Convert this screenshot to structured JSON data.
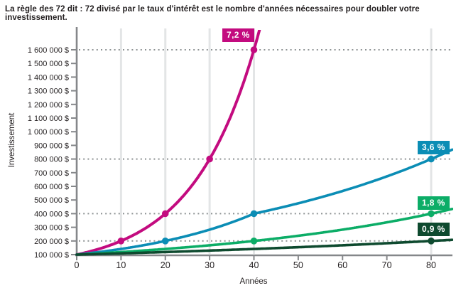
{
  "title": "La règle des 72 dit : 72 divisé par le taux d'intérêt est le nombre d'années nécessaires pour doubler votre investissement.",
  "chart_data": {
    "type": "line",
    "title": "La règle des 72 dit : 72 divisé par le taux d'intérêt est le nombre d'années nécessaires pour doubler votre investissement.",
    "xlabel": "Années",
    "ylabel": "Investissement",
    "x_ticks": [
      0,
      10,
      20,
      30,
      40,
      50,
      60,
      70,
      80
    ],
    "y_tick_labels": [
      "100 000 $",
      "200 000 $",
      "300 000 $",
      "400 000 $",
      "500 000 $",
      "600 000 $",
      "700 000 $",
      "800 000 $",
      "900 000 $",
      "1 000 000 $",
      "1 100 000 $",
      "1 200 000 $",
      "1 300 000 $",
      "1 400 000 $",
      "1 500 000 $",
      "1 600 000 $"
    ],
    "y_tick_values": [
      100000,
      200000,
      300000,
      400000,
      500000,
      600000,
      700000,
      800000,
      900000,
      1000000,
      1100000,
      1200000,
      1300000,
      1400000,
      1500000,
      1600000
    ],
    "xlim": [
      0,
      84.8
    ],
    "ylim": [
      100000,
      1780000
    ],
    "grid_vertical_years": [
      10,
      20,
      30,
      40,
      80
    ],
    "dotted_levels": [
      200000,
      400000,
      800000,
      1600000
    ],
    "axis_color": "#85878A",
    "gridline_color": "#E3E5E6",
    "dotted_color": "#8C9192",
    "text_color": "#231F20",
    "series": [
      {
        "name": "7,2 %",
        "rate_percent": 7.2,
        "color": "#C30B7F",
        "points": [
          [
            0,
            100000
          ],
          [
            10,
            200000
          ],
          [
            20,
            400000
          ],
          [
            30,
            800000
          ],
          [
            40,
            1600000
          ]
        ]
      },
      {
        "name": "3,6 %",
        "rate_percent": 3.6,
        "color": "#0B8DB5",
        "points": [
          [
            0,
            100000
          ],
          [
            20,
            200000
          ],
          [
            40,
            400000
          ],
          [
            80,
            800000
          ]
        ]
      },
      {
        "name": "1,8 %",
        "rate_percent": 1.8,
        "color": "#0CAD67",
        "points": [
          [
            0,
            100000
          ],
          [
            40,
            200000
          ],
          [
            80,
            400000
          ]
        ]
      },
      {
        "name": "0,9 %",
        "rate_percent": 0.9,
        "color": "#0E4A2F",
        "points": [
          [
            0,
            100000
          ],
          [
            80,
            200000
          ]
        ]
      }
    ]
  }
}
